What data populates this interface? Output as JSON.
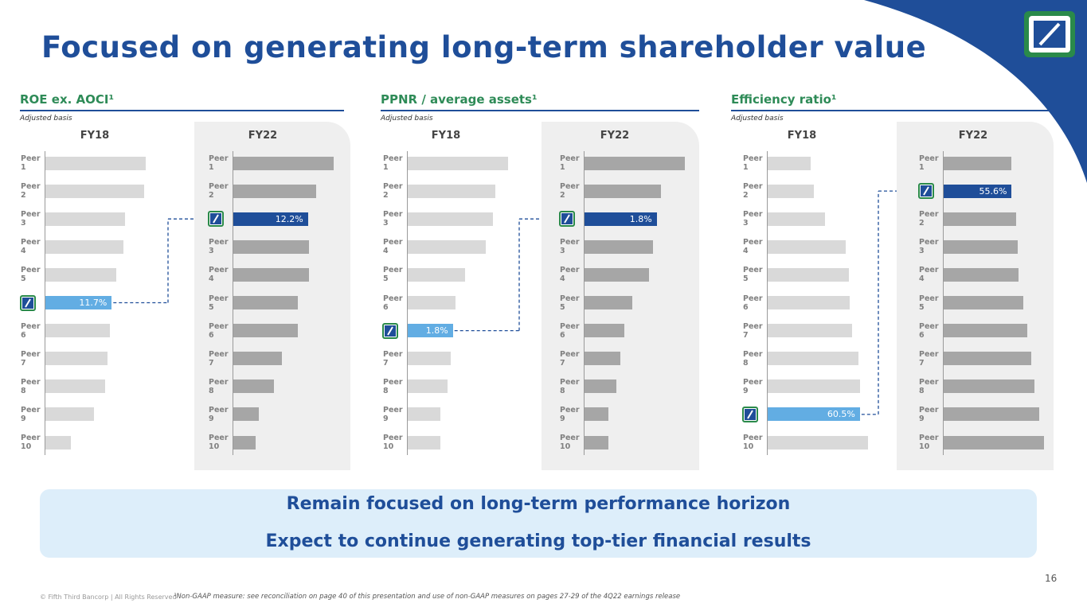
{
  "title": "Focused on generating long-term shareholder value",
  "panels": [
    {
      "title": "ROE ex. AOCI¹",
      "subtitle": "Adjusted basis",
      "charts": [
        {
          "type": "bar",
          "title": "FY18",
          "color": "#d9d9d9",
          "highlight_color": "#62ade3",
          "categories": [
            "Peer 1",
            "Peer 2",
            "Peer 3",
            "Peer 4",
            "Peer 5",
            null,
            "Peer 6",
            "Peer 7",
            "Peer 8",
            "Peer 9",
            "Peer 10"
          ],
          "values": [
            17.7,
            17.4,
            14.1,
            13.7,
            12.5,
            11.7,
            11.4,
            10.9,
            10.6,
            8.5,
            4.5
          ],
          "value_labels": [
            null,
            null,
            null,
            null,
            null,
            "11.7%",
            null,
            null,
            null,
            null,
            null
          ]
        },
        {
          "type": "bar",
          "title": "FY22",
          "color": "#a6a6a6",
          "highlight_color": "#1f4e99",
          "categories": [
            "Peer 1",
            "Peer 2",
            null,
            "Peer 3",
            "Peer 4",
            "Peer 5",
            "Peer 6",
            "Peer 7",
            "Peer 8",
            "Peer 9",
            "Peer 10"
          ],
          "values": [
            16.4,
            13.5,
            12.2,
            12.3,
            12.3,
            10.6,
            10.6,
            7.9,
            6.7,
            4.2,
            3.6
          ],
          "value_labels": [
            null,
            null,
            "12.2%",
            null,
            null,
            null,
            null,
            null,
            null,
            null,
            null
          ]
        }
      ]
    },
    {
      "title": "PPNR / average assets¹",
      "subtitle": "Adjusted basis",
      "charts": [
        {
          "type": "bar",
          "title": "FY18",
          "color": "#d9d9d9",
          "highlight_color": "#62ade3",
          "categories": [
            "Peer 1",
            "Peer 2",
            "Peer 3",
            "Peer 4",
            "Peer 5",
            "Peer 6",
            null,
            "Peer 7",
            "Peer 8",
            "Peer 9",
            "Peer 10"
          ],
          "values": [
            4.0,
            3.5,
            3.4,
            3.1,
            2.3,
            1.9,
            1.8,
            1.7,
            1.6,
            1.3,
            1.3
          ],
          "value_labels": [
            null,
            null,
            null,
            null,
            null,
            null,
            "1.8%",
            null,
            null,
            null,
            null
          ]
        },
        {
          "type": "bar",
          "title": "FY22",
          "color": "#a6a6a6",
          "highlight_color": "#1f4e99",
          "categories": [
            "Peer 1",
            "Peer 2",
            null,
            "Peer 3",
            "Peer 4",
            "Peer 5",
            "Peer 6",
            "Peer 7",
            "Peer 8",
            "Peer 9",
            "Peer 10"
          ],
          "values": [
            2.5,
            1.9,
            1.8,
            1.7,
            1.6,
            1.2,
            1.0,
            0.9,
            0.8,
            0.6,
            0.6
          ],
          "value_labels": [
            null,
            null,
            "1.8%",
            null,
            null,
            null,
            null,
            null,
            null,
            null,
            null
          ]
        }
      ]
    },
    {
      "title": "Efficiency ratio¹",
      "subtitle": "Adjusted basis",
      "charts": [
        {
          "type": "bar",
          "title": "FY18",
          "color": "#d9d9d9",
          "highlight_color": "#62ade3",
          "categories": [
            "Peer 1",
            "Peer 2",
            "Peer 3",
            "Peer 4",
            "Peer 5",
            "Peer 6",
            "Peer 7",
            "Peer 8",
            "Peer 9",
            null,
            "Peer 10"
          ],
          "values": [
            28.2,
            30.5,
            37.6,
            51.1,
            53.4,
            54.0,
            55.2,
            59.3,
            60.5,
            60.5,
            65.8
          ],
          "value_labels": [
            null,
            null,
            null,
            null,
            null,
            null,
            null,
            null,
            null,
            "60.5%",
            null
          ]
        },
        {
          "type": "bar",
          "title": "FY22",
          "color": "#a6a6a6",
          "highlight_color": "#1f4e99",
          "categories": [
            "Peer 1",
            null,
            "Peer 2",
            "Peer 3",
            "Peer 4",
            "Peer 5",
            "Peer 6",
            "Peer 7",
            "Peer 8",
            "Peer 9",
            "Peer 10"
          ],
          "values": [
            55.6,
            55.6,
            59.0,
            60.3,
            61.0,
            65.1,
            68.5,
            71.9,
            73.9,
            78.0,
            82.0
          ],
          "value_labels": [
            null,
            "55.6%",
            null,
            null,
            null,
            null,
            null,
            null,
            null,
            null,
            null
          ]
        }
      ]
    }
  ],
  "callout": [
    "Remain focused on long-term performance horizon",
    "Expect to continue generating top-tier financial results"
  ],
  "copyright": "© Fifth Third Bancorp | All Rights Reserved",
  "footnote": "¹Non-GAAP measure: see reconciliation on page 40 of this presentation and use of non-GAAP measures on pages 27-29 of the 4Q22 earnings release",
  "page_number": "16"
}
